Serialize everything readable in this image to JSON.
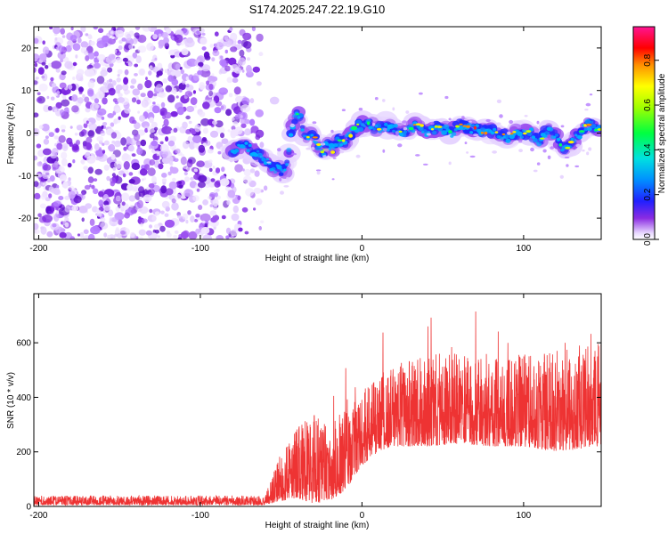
{
  "title": "S174.2025.247.22.19.G10",
  "chart_data": [
    {
      "type": "heatmap",
      "xlabel": "Height of straight line (km)",
      "ylabel": "Frequency (Hz)",
      "xlim": [
        -203,
        148
      ],
      "ylim": [
        -25,
        25
      ],
      "xticks": [
        -200,
        -100,
        0,
        100
      ],
      "yticks": [
        -20,
        -10,
        0,
        10,
        20
      ],
      "noise_region": {
        "x": [
          -203,
          -60
        ],
        "y": [
          -25,
          25
        ]
      },
      "ridge": {
        "x": [
          -80,
          -72,
          -65,
          -60,
          -56,
          -52,
          -48,
          -46,
          -44,
          -42,
          -40,
          -38,
          -35,
          -32,
          -28,
          -24,
          -22,
          -20,
          -18,
          -15,
          -10,
          -5,
          0,
          5,
          10,
          15,
          20,
          25,
          30,
          35,
          40,
          45,
          50,
          55,
          60,
          65,
          70,
          75,
          80,
          85,
          90,
          95,
          100,
          105,
          110,
          115,
          120,
          125,
          130,
          135,
          140,
          145,
          148
        ],
        "y": [
          -4,
          -3,
          -5,
          -6,
          -8,
          -8.5,
          -9,
          -6,
          -1,
          3,
          5,
          4,
          -2,
          0,
          -2,
          -5,
          -3,
          -3,
          -4,
          -2,
          -2,
          1,
          2,
          2,
          1,
          2,
          1,
          0,
          1,
          2,
          0,
          1,
          1,
          0,
          2,
          1,
          1,
          0.5,
          0.5,
          0,
          -1,
          0,
          0,
          0,
          -2,
          1,
          -1,
          -4,
          -2,
          0,
          2,
          1,
          1
        ]
      },
      "colorbar": {
        "label": "Normalized spectral amplitude",
        "ticks": [
          0.0,
          0.2,
          0.4,
          0.6,
          0.8
        ],
        "range": [
          0,
          0.95
        ]
      }
    },
    {
      "type": "line",
      "xlabel": "Height of straight line (km)",
      "ylabel": "SNR (10 * v/v)",
      "xlim": [
        -203,
        148
      ],
      "ylim": [
        0,
        780
      ],
      "xticks": [
        -200,
        -100,
        0,
        100
      ],
      "yticks": [
        0,
        200,
        400,
        600
      ],
      "color": "#ee3333",
      "envelope": {
        "x": [
          -203,
          -60,
          -50,
          -40,
          -30,
          -20,
          -10,
          0,
          10,
          20,
          40,
          60,
          80,
          100,
          120,
          148
        ],
        "low": [
          5,
          5,
          20,
          30,
          10,
          20,
          60,
          150,
          200,
          220,
          220,
          230,
          220,
          220,
          200,
          220
        ],
        "high": [
          40,
          40,
          200,
          300,
          350,
          300,
          360,
          420,
          480,
          520,
          560,
          560,
          540,
          560,
          580,
          600
        ]
      }
    }
  ]
}
